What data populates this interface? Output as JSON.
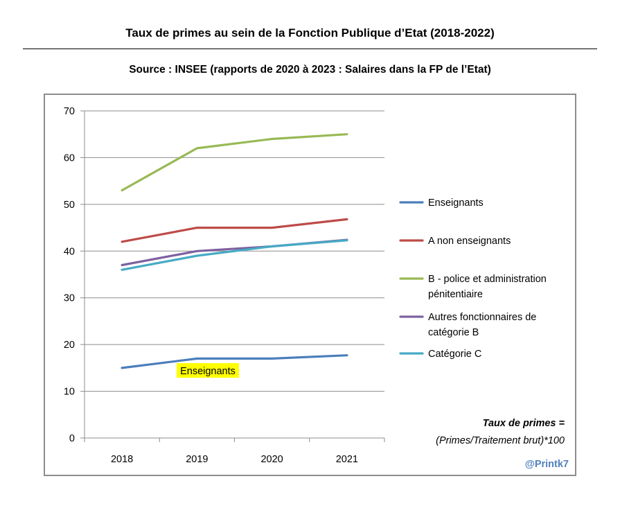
{
  "header": {
    "title": "Taux de primes au sein de la Fonction Publique d’Etat (2018-2022)",
    "subtitle": "Source : INSEE (rapports de 2020 à 2023 : Salaires dans la FP de l’Etat)"
  },
  "chart_data": {
    "type": "line",
    "title": "Taux de primes au sein de la Fonction Publique d’Etat (2018-2022)",
    "xlabel": "",
    "ylabel": "",
    "categories": [
      "2018",
      "2019",
      "2020",
      "2021"
    ],
    "ylim": [
      0,
      70
    ],
    "yticks": [
      0,
      10,
      20,
      30,
      40,
      50,
      60,
      70
    ],
    "grid": true,
    "legend_position": "right",
    "series": [
      {
        "name": "Enseignants",
        "legend_lines": [
          "Enseignants"
        ],
        "color": "#4a7ebb",
        "values": [
          15,
          17,
          17,
          17.7
        ]
      },
      {
        "name": "A non enseignants",
        "legend_lines": [
          "A non enseignants"
        ],
        "color": "#be4b48",
        "values": [
          42,
          45,
          45,
          46.8
        ]
      },
      {
        "name": "B - police et administration pénitentiaire",
        "legend_lines": [
          "B - police et administration",
          "pénitentiaire"
        ],
        "color": "#98b954",
        "values": [
          53,
          62,
          64,
          65
        ]
      },
      {
        "name": "Autres fonctionnaires de catégorie B",
        "legend_lines": [
          "Autres fonctionnaires de",
          "catégorie B"
        ],
        "color": "#7d60a0",
        "values": [
          37,
          40,
          41,
          42.4
        ]
      },
      {
        "name": "Catégorie C",
        "legend_lines": [
          "Catégorie C"
        ],
        "color": "#46aac5",
        "values": [
          36,
          39,
          41,
          42.3
        ]
      }
    ],
    "annotations": {
      "highlight_label": "Enseignants",
      "highlight_color": "#ffff00",
      "formula_line1": "Taux de primes =",
      "formula_line2": "(Primes/Traitement brut)*100",
      "credit": "@Printk7",
      "credit_color": "#4f81bd"
    }
  }
}
